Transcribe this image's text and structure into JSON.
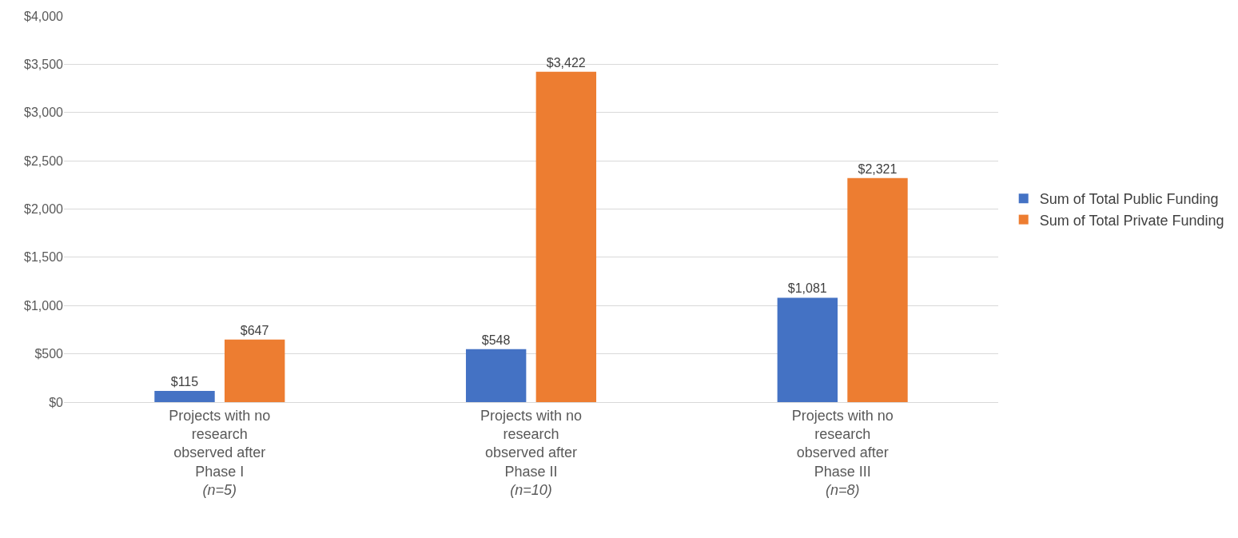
{
  "chart_data": {
    "type": "bar",
    "categories": [
      "Projects with no\nresearch\nobserved after\nPhase I\n(n=5)",
      "Projects with no\nresearch\nobserved after\nPhase II\n(n=10)",
      "Projects with no\nresearch\nobserved after\nPhase III\n(n=8)"
    ],
    "series": [
      {
        "name": "Sum of Total Public Funding",
        "color": "#4472c4",
        "values": [
          115,
          548,
          1081
        ],
        "value_labels": [
          "$115",
          "$548",
          "$1,081"
        ]
      },
      {
        "name": "Sum of Total Private Funding",
        "color": "#ed7d31",
        "values": [
          647,
          3422,
          2321
        ],
        "value_labels": [
          "$647",
          "$3,422",
          "$2,321"
        ]
      }
    ],
    "ylim": [
      0,
      4000
    ],
    "yticks": [
      {
        "value": 0,
        "label": "$0"
      },
      {
        "value": 500,
        "label": "$500"
      },
      {
        "value": 1000,
        "label": "$1,000"
      },
      {
        "value": 1500,
        "label": "$1,500"
      },
      {
        "value": 2000,
        "label": "$2,000"
      },
      {
        "value": 2500,
        "label": "$2,500"
      },
      {
        "value": 3000,
        "label": "$3,000"
      },
      {
        "value": 3500,
        "label": "$3,500"
      },
      {
        "value": 4000,
        "label": "$4,000"
      }
    ],
    "grid": "y",
    "legend": "right"
  }
}
